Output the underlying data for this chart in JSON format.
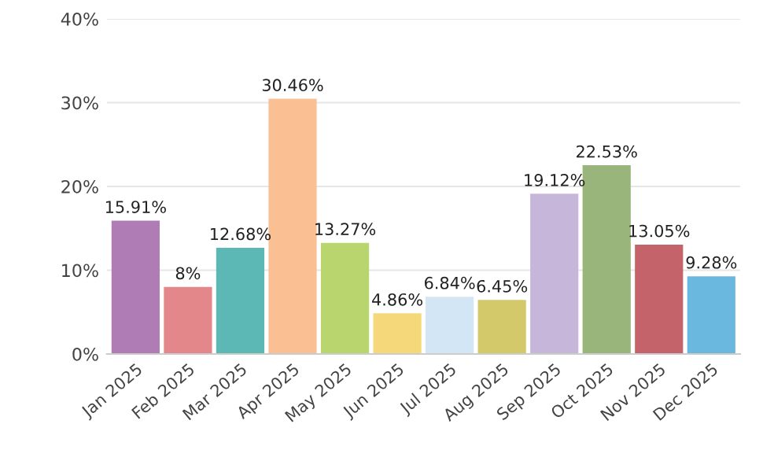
{
  "chart_data": {
    "type": "bar",
    "categories": [
      "Jan 2025",
      "Feb 2025",
      "Mar 2025",
      "Apr 2025",
      "May 2025",
      "Jun 2025",
      "Jul 2025",
      "Aug 2025",
      "Sep 2025",
      "Oct 2025",
      "Nov 2025",
      "Dec 2025"
    ],
    "values": [
      15.91,
      8,
      12.68,
      30.46,
      13.27,
      4.86,
      6.84,
      6.45,
      19.12,
      22.53,
      13.05,
      9.28
    ],
    "value_labels": [
      "15.91%",
      "8%",
      "12.68%",
      "30.46%",
      "13.27%",
      "4.86%",
      "6.84%",
      "6.45%",
      "19.12%",
      "22.53%",
      "13.05%",
      "9.28%"
    ],
    "colors": [
      "#b07cb5",
      "#e4878a",
      "#5bb8b4",
      "#fbbf94",
      "#b8d56e",
      "#f5d87a",
      "#d3e6f6",
      "#d4c96a",
      "#c6b6da",
      "#9ab57c",
      "#c4646a",
      "#6ab8e0"
    ],
    "ylim": [
      0,
      40
    ],
    "yticks": [
      {
        "value": 0,
        "label": "0%"
      },
      {
        "value": 10,
        "label": "10%"
      },
      {
        "value": 20,
        "label": "20%"
      },
      {
        "value": 30,
        "label": "30%"
      },
      {
        "value": 40,
        "label": "40%"
      }
    ],
    "grid": "y"
  }
}
